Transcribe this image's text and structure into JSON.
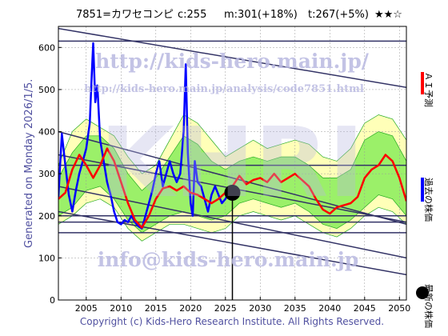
{
  "header": {
    "stock": "7851=カワセコンピ",
    "current": "c:255",
    "mid": "m:301(+18%)",
    "target": "t:267(+5%)",
    "stars": "★★☆"
  },
  "side_left": "Generated on Monday 2026/1/5.",
  "legend": {
    "forecast": "ＡＩ予測",
    "past": "過去の株価",
    "latest": "最新の株価"
  },
  "watermarks": {
    "url1": "http://kids-hero.main.jp/",
    "url2": "http://kids-hero.main.jp/analysis/code7851.html",
    "email": "info@kids-hero.main.jp",
    "logo": "KHRI"
  },
  "copyright": "Copyright (c) Kids-Hero Research Institute. All Rights Reserved.",
  "colors": {
    "forecast": "#ff0000",
    "past": "#0000ff",
    "latest": "#000000",
    "band_outer": "#ffffb0",
    "band_inner": "#90ee60",
    "band_lines": "#22aa22",
    "trend_lines": "#333366",
    "watermark": "#b8b8e0"
  },
  "chart_data": {
    "type": "line",
    "xlim": [
      2001,
      2051
    ],
    "ylim": [
      0,
      650
    ],
    "x_ticks": [
      2005,
      2010,
      2015,
      2020,
      2025,
      2030,
      2035,
      2040,
      2045,
      2050
    ],
    "y_ticks": [
      0,
      100,
      200,
      300,
      400,
      500,
      600
    ],
    "grid": true,
    "latest_point": {
      "x": 2026.0,
      "y": 255
    },
    "horizontal_lines": [
      615,
      160,
      200,
      320,
      185
    ],
    "trend_lines": [
      {
        "from": [
          2001,
          645
        ],
        "to": [
          2051,
          505
        ]
      },
      {
        "from": [
          2001,
          400
        ],
        "to": [
          2051,
          180
        ]
      },
      {
        "from": [
          2001,
          345
        ],
        "to": [
          2051,
          185
        ]
      },
      {
        "from": [
          2001,
          270
        ],
        "to": [
          2051,
          100
        ]
      },
      {
        "from": [
          2001,
          210
        ],
        "to": [
          2051,
          60
        ]
      }
    ],
    "series": [
      {
        "name": "過去の株価",
        "points": [
          [
            2001.0,
            245
          ],
          [
            2001.5,
            395
          ],
          [
            2002.0,
            320
          ],
          [
            2002.5,
            250
          ],
          [
            2003.0,
            210
          ],
          [
            2003.5,
            260
          ],
          [
            2004.0,
            300
          ],
          [
            2004.5,
            330
          ],
          [
            2005.0,
            360
          ],
          [
            2005.5,
            420
          ],
          [
            2005.8,
            540
          ],
          [
            2006.0,
            610
          ],
          [
            2006.3,
            470
          ],
          [
            2006.6,
            510
          ],
          [
            2007.0,
            380
          ],
          [
            2007.5,
            330
          ],
          [
            2008.0,
            280
          ],
          [
            2008.5,
            250
          ],
          [
            2009.0,
            210
          ],
          [
            2009.5,
            185
          ],
          [
            2010.0,
            180
          ],
          [
            2010.5,
            190
          ],
          [
            2011.0,
            185
          ],
          [
            2011.5,
            200
          ],
          [
            2012.0,
            185
          ],
          [
            2012.5,
            175
          ],
          [
            2013.0,
            170
          ],
          [
            2013.5,
            200
          ],
          [
            2014.0,
            230
          ],
          [
            2014.5,
            260
          ],
          [
            2015.0,
            300
          ],
          [
            2015.5,
            330
          ],
          [
            2016.0,
            270
          ],
          [
            2016.5,
            300
          ],
          [
            2017.0,
            330
          ],
          [
            2017.5,
            300
          ],
          [
            2018.0,
            280
          ],
          [
            2018.5,
            300
          ],
          [
            2019.0,
            400
          ],
          [
            2019.3,
            560
          ],
          [
            2019.6,
            350
          ],
          [
            2020.0,
            230
          ],
          [
            2020.3,
            200
          ],
          [
            2020.6,
            330
          ],
          [
            2021.0,
            280
          ],
          [
            2021.5,
            270
          ],
          [
            2022.0,
            240
          ],
          [
            2022.5,
            210
          ],
          [
            2023.0,
            250
          ],
          [
            2023.5,
            270
          ],
          [
            2024.0,
            250
          ],
          [
            2024.5,
            230
          ],
          [
            2025.0,
            240
          ],
          [
            2025.5,
            255
          ]
        ]
      },
      {
        "name": "ＡＩ予測",
        "points": [
          [
            2001.0,
            240
          ],
          [
            2002.0,
            255
          ],
          [
            2003.0,
            310
          ],
          [
            2004.0,
            345
          ],
          [
            2005.0,
            320
          ],
          [
            2006.0,
            290
          ],
          [
            2007.0,
            320
          ],
          [
            2008.0,
            360
          ],
          [
            2009.0,
            330
          ],
          [
            2010.0,
            280
          ],
          [
            2011.0,
            230
          ],
          [
            2012.0,
            190
          ],
          [
            2013.0,
            172
          ],
          [
            2014.0,
            200
          ],
          [
            2015.0,
            240
          ],
          [
            2016.0,
            265
          ],
          [
            2017.0,
            270
          ],
          [
            2018.0,
            260
          ],
          [
            2019.0,
            270
          ],
          [
            2020.0,
            255
          ],
          [
            2021.0,
            250
          ],
          [
            2022.0,
            240
          ],
          [
            2023.0,
            230
          ],
          [
            2024.0,
            240
          ],
          [
            2026.0,
            270
          ],
          [
            2027.0,
            295
          ],
          [
            2028.0,
            275
          ],
          [
            2029.0,
            285
          ],
          [
            2030.0,
            290
          ],
          [
            2031.0,
            280
          ],
          [
            2032.0,
            300
          ],
          [
            2033.0,
            280
          ],
          [
            2034.0,
            290
          ],
          [
            2035.0,
            300
          ],
          [
            2036.0,
            285
          ],
          [
            2037.0,
            270
          ],
          [
            2038.0,
            240
          ],
          [
            2039.0,
            215
          ],
          [
            2040.0,
            205
          ],
          [
            2041.0,
            220
          ],
          [
            2042.0,
            225
          ],
          [
            2043.0,
            230
          ],
          [
            2044.0,
            245
          ],
          [
            2045.0,
            290
          ],
          [
            2046.0,
            310
          ],
          [
            2047.0,
            320
          ],
          [
            2048.0,
            345
          ],
          [
            2049.0,
            330
          ],
          [
            2050.0,
            290
          ],
          [
            2051.0,
            235
          ]
        ]
      }
    ],
    "band_outer": {
      "x": [
        2001,
        2003,
        2005,
        2007,
        2009,
        2011,
        2013,
        2015,
        2017,
        2019,
        2021,
        2023,
        2025,
        2027,
        2029,
        2031,
        2033,
        2035,
        2037,
        2039,
        2041,
        2043,
        2045,
        2047,
        2049,
        2051
      ],
      "upper": [
        320,
        400,
        430,
        410,
        390,
        340,
        300,
        320,
        380,
        440,
        420,
        380,
        340,
        360,
        380,
        360,
        370,
        380,
        370,
        340,
        330,
        360,
        420,
        440,
        430,
        380
      ],
      "lower": [
        180,
        200,
        230,
        240,
        220,
        170,
        140,
        160,
        180,
        180,
        170,
        160,
        170,
        200,
        210,
        200,
        190,
        200,
        180,
        160,
        150,
        170,
        200,
        220,
        210,
        180
      ]
    },
    "band_inner": {
      "x": [
        2001,
        2003,
        2005,
        2007,
        2009,
        2011,
        2013,
        2015,
        2017,
        2019,
        2021,
        2023,
        2025,
        2027,
        2029,
        2031,
        2033,
        2035,
        2037,
        2039,
        2041,
        2043,
        2045,
        2047,
        2049,
        2051
      ],
      "upper": [
        290,
        350,
        390,
        390,
        360,
        300,
        260,
        290,
        340,
        390,
        370,
        330,
        310,
        330,
        340,
        330,
        340,
        340,
        320,
        290,
        290,
        310,
        380,
        400,
        390,
        330
      ],
      "lower": [
        200,
        220,
        260,
        270,
        240,
        190,
        160,
        180,
        200,
        210,
        200,
        190,
        200,
        230,
        240,
        230,
        220,
        230,
        210,
        180,
        170,
        190,
        220,
        250,
        240,
        200
      ]
    }
  }
}
